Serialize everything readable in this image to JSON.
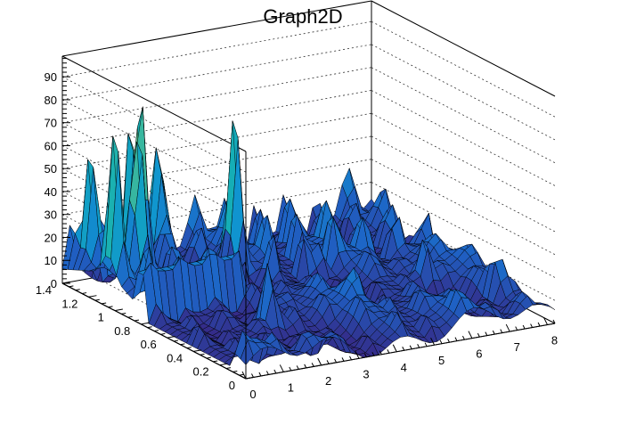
{
  "chart_data": {
    "type": "surface",
    "title": "Graph2D",
    "xlabel": "",
    "ylabel": "",
    "zlabel": "",
    "xlim": [
      0,
      8.2
    ],
    "ylim": [
      0,
      1.4
    ],
    "zlim": [
      0,
      99
    ],
    "x_ticks": [
      "0",
      "1",
      "2",
      "3",
      "4",
      "5",
      "6",
      "7",
      "8"
    ],
    "y_ticks": [
      "0",
      "0.2",
      "0.4",
      "0.6",
      "0.8",
      "1",
      "1.2",
      "1.4"
    ],
    "z_ticks": [
      "0",
      "10",
      "20",
      "30",
      "40",
      "50",
      "60",
      "70",
      "80",
      "90"
    ],
    "grid": true,
    "palette": [
      "#352a87",
      "#1e63c6",
      "#1094d0",
      "#15b0b4",
      "#59bd8c",
      "#c2bb58",
      "#f9fb0e"
    ],
    "surface_features": [
      {
        "description": "peaks",
        "x": 1.2,
        "y": 1.22,
        "z": 83
      },
      {
        "x": 0.9,
        "y": 1.1,
        "z": 75
      },
      {
        "x": 1.55,
        "y": 1.25,
        "z": 78
      },
      {
        "x": 0.4,
        "y": 1.3,
        "z": 62
      },
      {
        "x": 2.4,
        "y": 1.35,
        "z": 60
      },
      {
        "x": 0.2,
        "y": 1.05,
        "z": 55
      },
      {
        "x": 3.5,
        "y": 1.1,
        "z": 60
      },
      {
        "x": 2.2,
        "y": 0.45,
        "z": 42
      },
      {
        "x": 6.8,
        "y": 0.6,
        "z": 30
      },
      {
        "x": 7.7,
        "y": 0.3,
        "z": 28
      },
      {
        "x": 5.0,
        "y": 0.9,
        "z": 25
      },
      {
        "x": 4.2,
        "y": 0.4,
        "z": 15
      },
      {
        "x": 1.4,
        "y": 0.3,
        "z": 0
      }
    ]
  }
}
